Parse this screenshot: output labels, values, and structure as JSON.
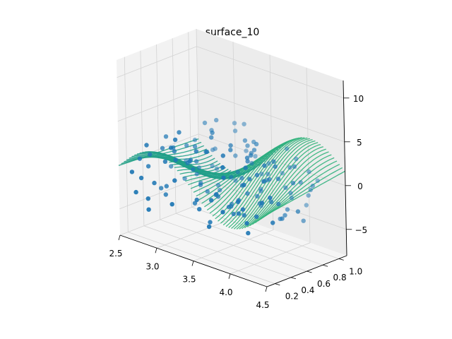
{
  "chart_data": {
    "type": "surface3d",
    "title": "surface_10",
    "xlabel": "",
    "ylabel": "",
    "zlabel": "",
    "xlim": [
      2.5,
      4.5
    ],
    "ylim": [
      0.1,
      1.1
    ],
    "zlim": [
      -8,
      12
    ],
    "x_ticks": [
      "2.5",
      "3.0",
      "3.5",
      "4.0",
      "4.5"
    ],
    "y_ticks": [
      "0.2",
      "0.4",
      "0.6",
      "0.8",
      "1.0"
    ],
    "z_ticks": [
      "−5",
      "0",
      "5",
      "10"
    ],
    "x_tick_values": [
      2.5,
      3.0,
      3.5,
      4.0,
      4.5
    ],
    "y_tick_values": [
      0.2,
      0.4,
      0.6,
      0.8,
      1.0
    ],
    "z_tick_values": [
      -5,
      0,
      5,
      10
    ],
    "grid": true,
    "surface": {
      "style": "contour-wireframe",
      "colormap": "viridis",
      "x_range": [
        2.5,
        4.5
      ],
      "y_range": [
        0.1,
        1.1
      ],
      "function": "z = 3*sin(2*pi*(x-2.5)/2)*cos(pi*y) + (x-3)*y"
    },
    "scatter": {
      "color": "#1f77b4",
      "count": 150,
      "x_range": [
        2.6,
        4.4
      ],
      "y_range": [
        0.1,
        1.05
      ],
      "z_range": [
        -4,
        4
      ]
    }
  }
}
